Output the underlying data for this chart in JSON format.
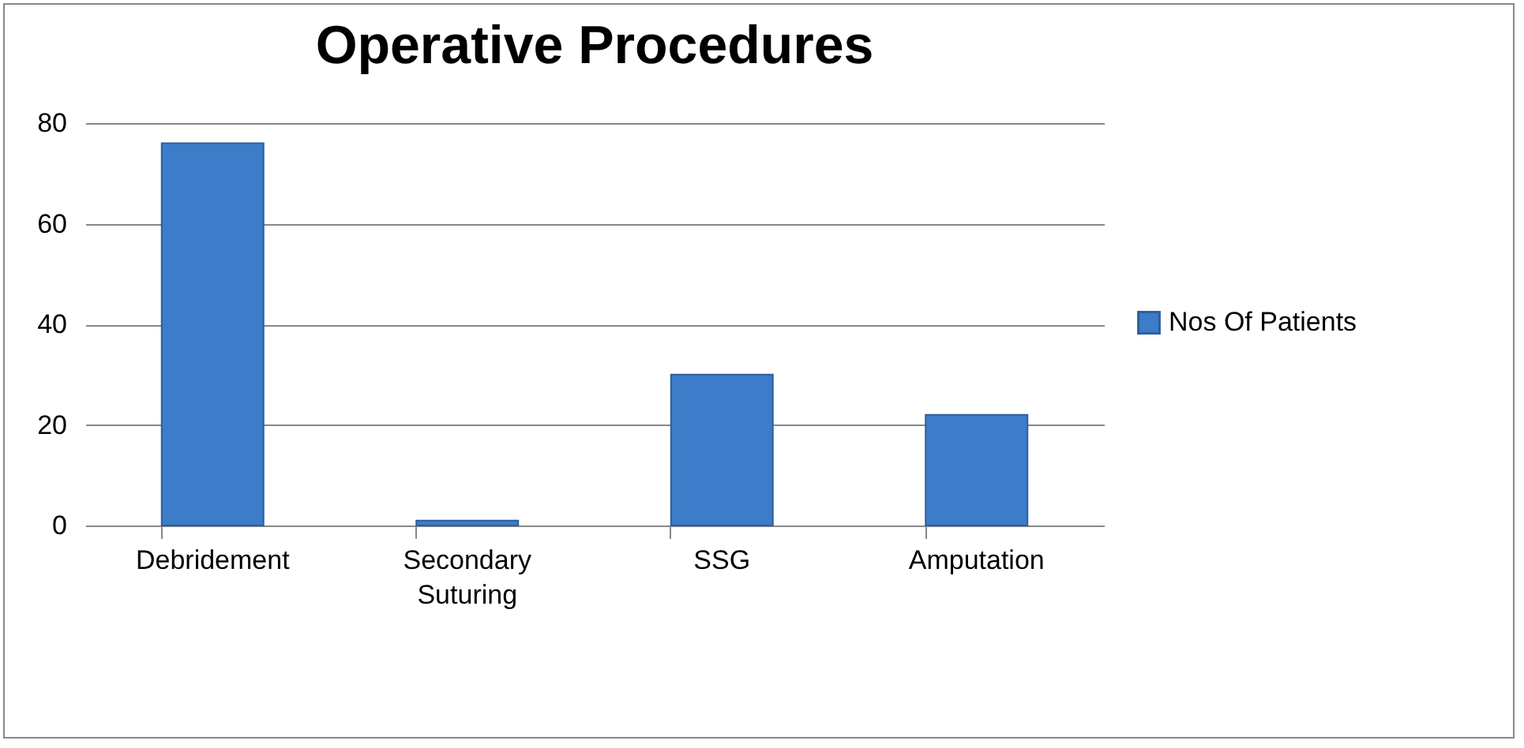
{
  "chart_data": {
    "type": "bar",
    "title": "Operative Procedures",
    "categories": [
      "Debridement",
      "Secondary Suturing",
      "SSG",
      "Amputation"
    ],
    "series": [
      {
        "name": "Nos Of Patients",
        "color": "#3c7cc8",
        "values": [
          76,
          1,
          30,
          22
        ]
      }
    ],
    "ylim": [
      0,
      80
    ],
    "yticks": [
      0,
      20,
      40,
      60,
      80
    ],
    "grid": "y",
    "legend": "right"
  }
}
